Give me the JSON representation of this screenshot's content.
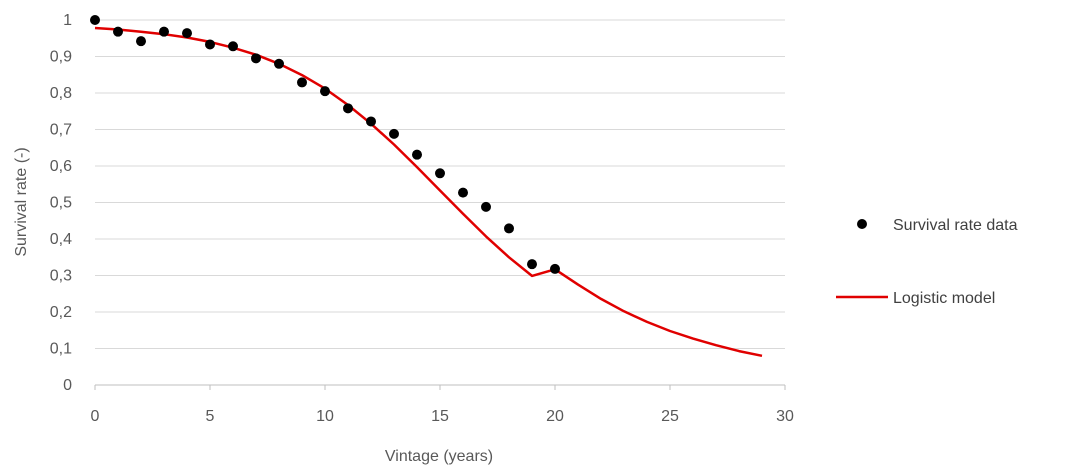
{
  "chart_data": {
    "type": "scatter",
    "title": "",
    "xlabel": "Vintage (years)",
    "ylabel": "Survival rate (-)",
    "xlim": [
      0,
      30
    ],
    "ylim": [
      0,
      1
    ],
    "x_ticks": [
      0,
      5,
      10,
      15,
      20,
      25,
      30
    ],
    "x_tick_labels": [
      "0",
      "5",
      "10",
      "15",
      "20",
      "25",
      "30"
    ],
    "y_ticks": [
      0,
      0.1,
      0.2,
      0.3,
      0.4,
      0.5,
      0.6,
      0.7,
      0.8,
      0.9,
      1
    ],
    "y_tick_labels": [
      "0",
      "0,1",
      "0,2",
      "0,3",
      "0,4",
      "0,5",
      "0,6",
      "0,7",
      "0,8",
      "0,9",
      "1"
    ],
    "grid": "horizontal",
    "legend_position": "right",
    "series": [
      {
        "name": "Survival rate data",
        "kind": "scatter",
        "color": "#000000",
        "x": [
          0,
          1,
          2,
          3,
          4,
          5,
          6,
          7,
          8,
          9,
          10,
          11,
          12,
          13,
          14,
          15,
          16,
          17,
          18,
          19,
          20
        ],
        "y": [
          1.0,
          0.968,
          0.942,
          0.968,
          0.964,
          0.933,
          0.928,
          0.895,
          0.88,
          0.829,
          0.805,
          0.758,
          0.722,
          0.688,
          0.631,
          0.58,
          0.527,
          0.488,
          0.429,
          0.331,
          0.318
        ]
      },
      {
        "name": "Logistic model",
        "kind": "line",
        "color": "#e00000",
        "x": [
          0,
          1,
          2,
          3,
          4,
          5,
          6,
          7,
          8,
          9,
          10,
          11,
          12,
          13,
          14,
          15,
          16,
          17,
          18,
          19,
          20,
          21,
          22,
          23,
          24,
          25,
          26,
          27,
          28,
          29
        ],
        "y": [
          0.978,
          0.974,
          0.968,
          0.961,
          0.952,
          0.94,
          0.924,
          0.905,
          0.88,
          0.849,
          0.812,
          0.767,
          0.716,
          0.659,
          0.597,
          0.533,
          0.469,
          0.407,
          0.35,
          0.299,
          0.317,
          0.275,
          0.236,
          0.202,
          0.173,
          0.148,
          0.127,
          0.109,
          0.093,
          0.08
        ]
      }
    ]
  }
}
